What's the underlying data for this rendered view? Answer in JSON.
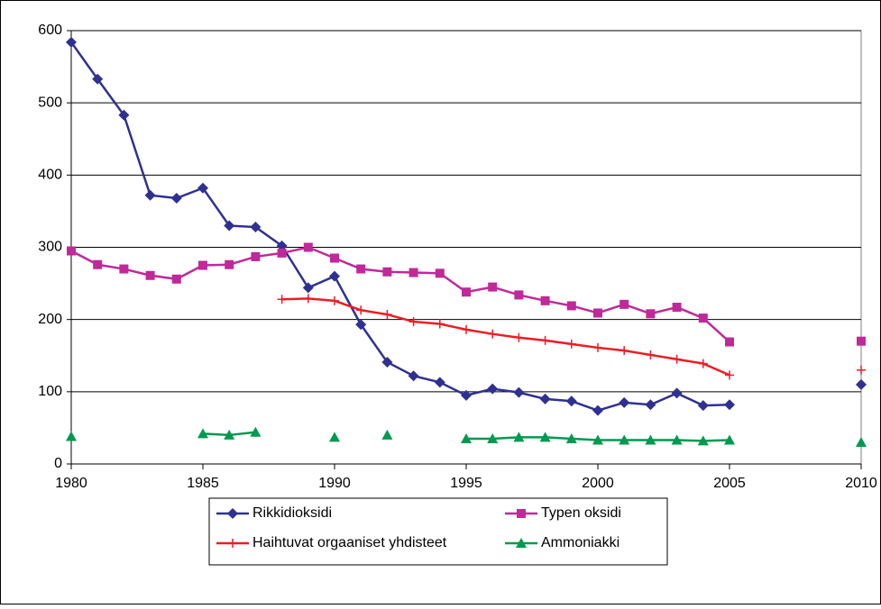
{
  "chart_data": {
    "type": "line",
    "x": [
      1980,
      1981,
      1982,
      1983,
      1984,
      1985,
      1986,
      1987,
      1988,
      1989,
      1990,
      1991,
      1992,
      1993,
      1994,
      1995,
      1996,
      1997,
      1998,
      1999,
      2000,
      2001,
      2002,
      2003,
      2004,
      2005,
      2006,
      2007,
      2008,
      2009,
      2010
    ],
    "series": [
      {
        "name": "Rikkidioksidi",
        "color": "#2e3192",
        "marker": "diamond",
        "values": [
          584,
          533,
          483,
          372,
          368,
          382,
          330,
          328,
          302,
          244,
          260,
          193,
          141,
          122,
          113,
          95,
          104,
          99,
          90,
          87,
          74,
          85,
          82,
          98,
          81,
          82,
          null,
          null,
          null,
          null,
          110
        ]
      },
      {
        "name": "Typen oksidi",
        "color": "#c0299a",
        "marker": "square",
        "values": [
          295,
          276,
          270,
          261,
          256,
          275,
          276,
          287,
          292,
          300,
          285,
          270,
          266,
          265,
          264,
          238,
          245,
          234,
          226,
          219,
          209,
          221,
          208,
          217,
          202,
          169,
          null,
          null,
          null,
          null,
          170
        ]
      },
      {
        "name": "Haihtuvat orgaaniset yhdisteet",
        "color": "#ee1c24",
        "marker": "plus",
        "values": [
          null,
          null,
          null,
          null,
          null,
          null,
          null,
          null,
          228,
          229,
          226,
          213,
          207,
          197,
          194,
          186,
          180,
          175,
          171,
          166,
          161,
          157,
          151,
          145,
          139,
          123,
          null,
          null,
          null,
          null,
          130
        ]
      },
      {
        "name": "Ammoniakki",
        "color": "#009a4e",
        "marker": "triangle",
        "values": [
          38,
          null,
          null,
          null,
          null,
          42,
          40,
          44,
          null,
          null,
          37,
          null,
          40,
          null,
          null,
          35,
          35,
          37,
          37,
          35,
          33,
          33,
          33,
          33,
          32,
          33,
          null,
          null,
          null,
          null,
          30
        ]
      }
    ],
    "xlim": [
      1980,
      2010
    ],
    "xticks": [
      1980,
      1985,
      1990,
      1995,
      2000,
      2005,
      2010
    ],
    "ylim": [
      0,
      600
    ],
    "yticks": [
      0,
      100,
      200,
      300,
      400,
      500,
      600
    ],
    "grid": true
  }
}
